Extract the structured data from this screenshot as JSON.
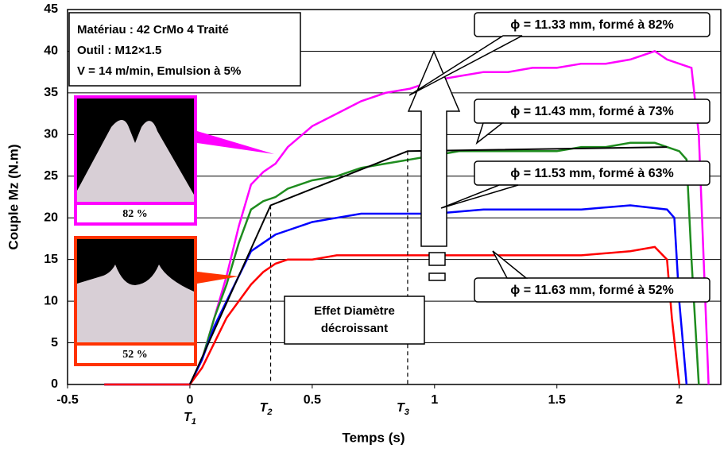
{
  "chart_data": {
    "type": "line",
    "xlabel": "Temps (s)",
    "ylabel": "Couple Mz (N.m)",
    "xlim": [
      -0.5,
      2.17
    ],
    "ylim": [
      0,
      45
    ],
    "xticks": [
      -0.5,
      0,
      0.5,
      1,
      1.5,
      2
    ],
    "yticks": [
      0,
      5,
      10,
      15,
      20,
      25,
      30,
      35,
      40,
      45
    ],
    "grid": true,
    "series": [
      {
        "name": "ϕ = 11.33 mm, formé à 82%",
        "color": "#ff00ff",
        "x": [
          -0.35,
          0,
          0.05,
          0.1,
          0.15,
          0.2,
          0.25,
          0.3,
          0.35,
          0.4,
          0.5,
          0.6,
          0.7,
          0.8,
          0.9,
          1.0,
          1.1,
          1.2,
          1.3,
          1.4,
          1.5,
          1.6,
          1.7,
          1.8,
          1.9,
          1.95,
          2.0,
          2.05,
          2.08,
          2.1,
          2.12
        ],
        "values": [
          0,
          0,
          3,
          8,
          13,
          19,
          24,
          25.5,
          26.5,
          28.5,
          31,
          32.5,
          34,
          35,
          35.5,
          36.5,
          37,
          37.5,
          37.5,
          38,
          38,
          38.5,
          38.5,
          39,
          40,
          39,
          38.5,
          38,
          30,
          15,
          0
        ]
      },
      {
        "name": "ϕ = 11.43 mm, formé à 73%",
        "color": "#1e8c1e",
        "x": [
          -0.35,
          0,
          0.05,
          0.1,
          0.15,
          0.2,
          0.25,
          0.3,
          0.35,
          0.4,
          0.5,
          0.6,
          0.7,
          0.8,
          0.9,
          1.0,
          1.1,
          1.2,
          1.3,
          1.4,
          1.5,
          1.6,
          1.7,
          1.8,
          1.9,
          1.95,
          2.0,
          2.03,
          2.05,
          2.08
        ],
        "values": [
          0,
          0,
          3,
          8,
          12,
          17,
          21,
          22,
          22.5,
          23.5,
          24.5,
          25,
          26,
          26.5,
          27,
          27.5,
          28,
          28,
          28,
          28,
          28,
          28.5,
          28.5,
          29,
          29,
          28.5,
          28,
          27,
          15,
          0
        ]
      },
      {
        "name": "ϕ = 11.53 mm, formé à 63%",
        "color": "#0000ff",
        "x": [
          -0.35,
          0,
          0.05,
          0.1,
          0.15,
          0.2,
          0.25,
          0.3,
          0.35,
          0.4,
          0.5,
          0.6,
          0.7,
          0.8,
          0.9,
          1.0,
          1.2,
          1.4,
          1.6,
          1.8,
          1.95,
          1.98,
          2.0,
          2.03
        ],
        "values": [
          0,
          0,
          3,
          7,
          10,
          13,
          16,
          17,
          18,
          18.5,
          19.5,
          20,
          20.5,
          20.5,
          20.5,
          20.5,
          21,
          21,
          21,
          21.5,
          21,
          20,
          10,
          0
        ]
      },
      {
        "name": "ϕ = 11.63 mm, formé à 52%",
        "color": "#ff0000",
        "x": [
          -0.35,
          0,
          0.05,
          0.1,
          0.15,
          0.2,
          0.25,
          0.3,
          0.35,
          0.4,
          0.5,
          0.6,
          0.8,
          1.0,
          1.2,
          1.4,
          1.6,
          1.8,
          1.9,
          1.95,
          1.97,
          2.0
        ],
        "values": [
          0,
          0,
          2,
          5,
          8,
          10,
          12,
          13.5,
          14.5,
          15,
          15,
          15.5,
          15.5,
          15.5,
          15.5,
          15.5,
          15.5,
          16,
          16.5,
          15,
          8,
          0
        ]
      },
      {
        "color": "#000000",
        "x": [
          0,
          0.33,
          0.89,
          1.95
        ],
        "values": [
          0,
          21.5,
          28,
          28.5
        ]
      }
    ],
    "info_box": [
      "Matériau : 42 CrMo 4 Traité",
      "Outil : M12×1.5",
      "V = 14 m/min, Emulsion à 5%"
    ],
    "arrow_label": [
      "Effet Diamètre",
      "décroissant"
    ],
    "insets": [
      {
        "label": "82 %",
        "color": "#ff00ff"
      },
      {
        "label": "52 %",
        "color": "#ff3300"
      }
    ],
    "markers": [
      {
        "label": "T",
        "subscript": "1",
        "x": 0
      },
      {
        "label": "T",
        "subscript": "2",
        "x": 0.33
      },
      {
        "label": "T",
        "subscript": "3",
        "x": 0.89
      }
    ]
  }
}
